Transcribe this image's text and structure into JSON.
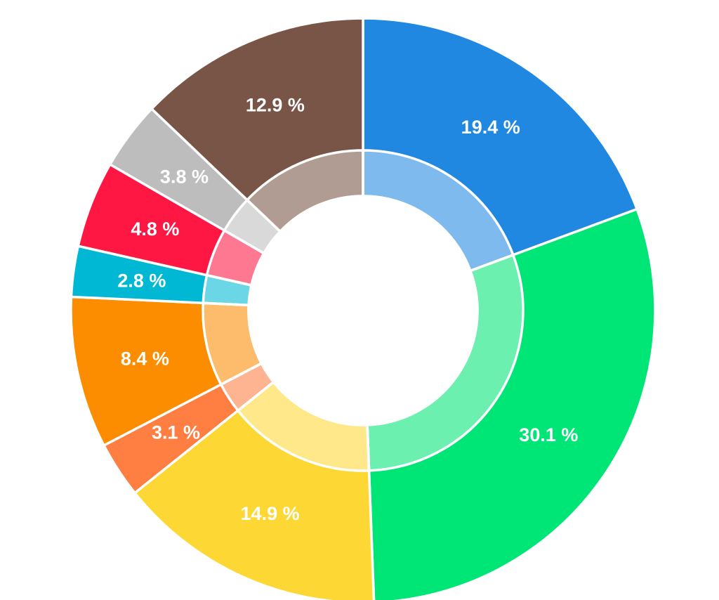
{
  "chart_data": {
    "type": "pie",
    "variant": "donut",
    "slices": [
      {
        "label": "19.4 %",
        "value": 19.4,
        "color": "#2188E2"
      },
      {
        "label": "30.1 %",
        "value": 30.1,
        "color": "#00E676"
      },
      {
        "label": "14.9 %",
        "value": 14.9,
        "color": "#FDD835"
      },
      {
        "label": "3.1 %",
        "value": 3.1,
        "color": "#FF7F43"
      },
      {
        "label": "8.4 %",
        "value": 8.4,
        "color": "#FC8C00"
      },
      {
        "label": "2.8 %",
        "value": 2.8,
        "color": "#00B8D4"
      },
      {
        "label": "4.8 %",
        "value": 4.8,
        "color": "#FF1744"
      },
      {
        "label": "3.8 %",
        "value": 3.8,
        "color": "#BDBDBD"
      },
      {
        "label": "12.9 %",
        "value": 12.9,
        "color": "#795548"
      }
    ]
  }
}
